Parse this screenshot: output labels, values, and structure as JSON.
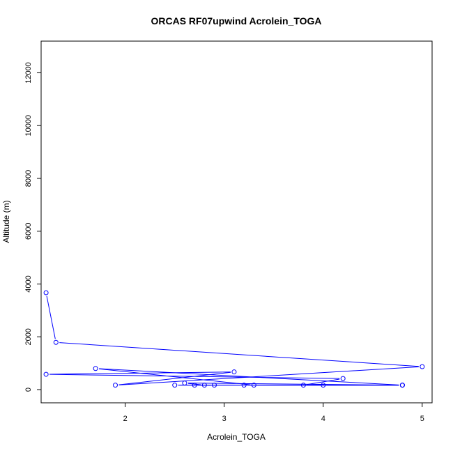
{
  "chart_data": {
    "type": "line",
    "title": "ORCAS RF07upwind Acrolein_TOGA",
    "xlabel": "Acrolein_TOGA",
    "ylabel": "Altitude (m)",
    "xlim": [
      1.15,
      5.1
    ],
    "ylim": [
      -500,
      13200
    ],
    "x_ticks": [
      2,
      3,
      4,
      5
    ],
    "x_tick_labels": [
      "2",
      "3",
      "4",
      "5"
    ],
    "y_ticks": [
      0,
      2000,
      4000,
      6000,
      8000,
      10000,
      12000
    ],
    "y_tick_labels": [
      "0",
      "2000",
      "4000",
      "6000",
      "8000",
      "10000",
      "12000"
    ],
    "grid": false,
    "marker": "open-circle",
    "colors": {
      "series": "#0000ff",
      "axis": "#000000"
    },
    "series": [
      {
        "x": [
          1.2,
          1.3,
          5.0,
          1.9,
          3.1,
          1.2,
          4.2,
          3.8,
          4.8,
          2.6,
          2.8,
          2.9,
          2.5,
          3.2,
          4.0,
          4.8,
          1.7,
          3.3,
          4.8,
          2.7
        ],
        "y": [
          3670,
          1790,
          870,
          170,
          670,
          580,
          420,
          170,
          170,
          250,
          170,
          170,
          170,
          170,
          170,
          170,
          800,
          170,
          170,
          170
        ]
      }
    ]
  }
}
